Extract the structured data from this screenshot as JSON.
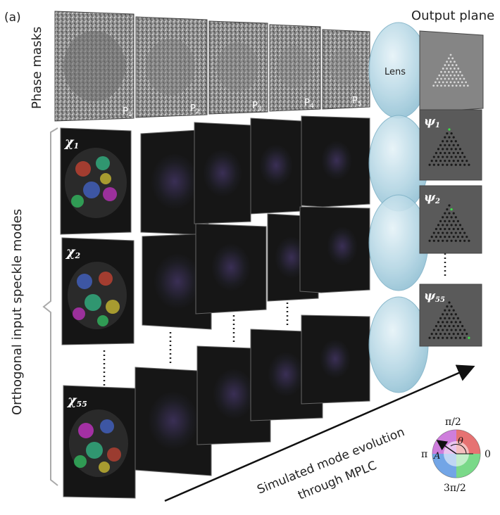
{
  "panel_label": "(a)",
  "output_plane_title": "Output plane",
  "phase_masks_label": "Phase masks",
  "lens_label": "Lens",
  "input_modes_label": "Orthogonal input speckle modes",
  "evolution_label_line1": "Simulated mode evolution",
  "evolution_label_line2": "through MPLC",
  "masks": [
    {
      "sym": "P",
      "sub": "1"
    },
    {
      "sym": "P",
      "sub": "2"
    },
    {
      "sym": "P",
      "sub": "3"
    },
    {
      "sym": "P",
      "sub": "4"
    },
    {
      "sym": "P",
      "sub": "5"
    }
  ],
  "input_modes": [
    {
      "sym": "χ",
      "sub": "1"
    },
    {
      "sym": "χ",
      "sub": "2"
    },
    {
      "sym": "χ",
      "sub": "55"
    }
  ],
  "outputs": [
    {
      "sym": "ψ",
      "sub": "1"
    },
    {
      "sym": "ψ",
      "sub": "2"
    },
    {
      "sym": "ψ",
      "sub": "55"
    }
  ],
  "phase_wheel": {
    "top": "π/2",
    "right": "0",
    "bottom": "3π/2",
    "left": "π",
    "angle_symbol": "θ",
    "amp_symbol": "A"
  },
  "colors": {
    "lens": "#b9d9e6",
    "mask": "#9a9a9a",
    "output_bg": "#5a5a5a",
    "speckle_bg": "#151515"
  }
}
